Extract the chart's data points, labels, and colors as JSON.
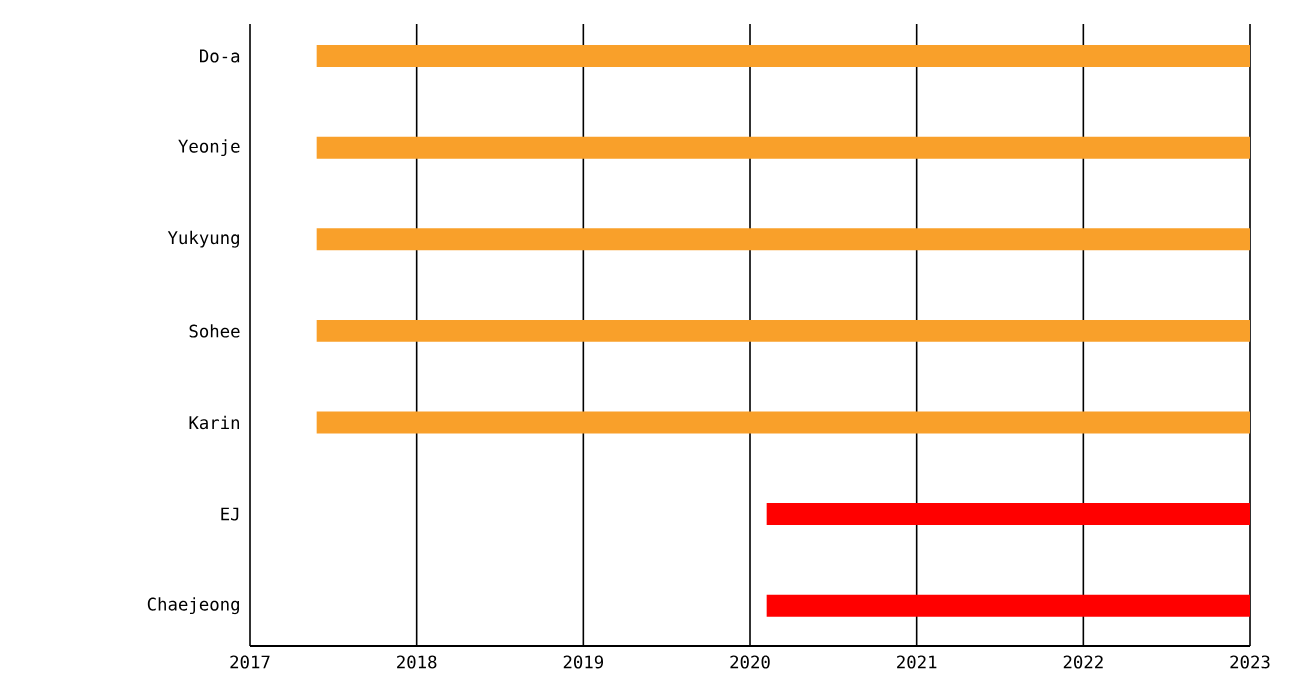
{
  "chart_data": {
    "type": "bar",
    "orientation": "horizontal",
    "categories": [
      "Do-a",
      "Yeonje",
      "Yukyung",
      "Sohee",
      "Karin",
      "EJ",
      "Chaejeong"
    ],
    "base": [
      2017.4,
      2017.4,
      2017.4,
      2017.4,
      2017.4,
      2020.1,
      2020.1
    ],
    "values": [
      5.6,
      5.6,
      5.6,
      5.6,
      5.6,
      2.9,
      2.9
    ],
    "colors": [
      "#f9a02a",
      "#f9a02a",
      "#f9a02a",
      "#f9a02a",
      "#f9a02a",
      "#ff0000",
      "#ff0000"
    ],
    "xlim": [
      2017,
      2023
    ],
    "xticks": [
      2017,
      2018,
      2019,
      2020,
      2021,
      2022,
      2023
    ],
    "grid": "x"
  }
}
